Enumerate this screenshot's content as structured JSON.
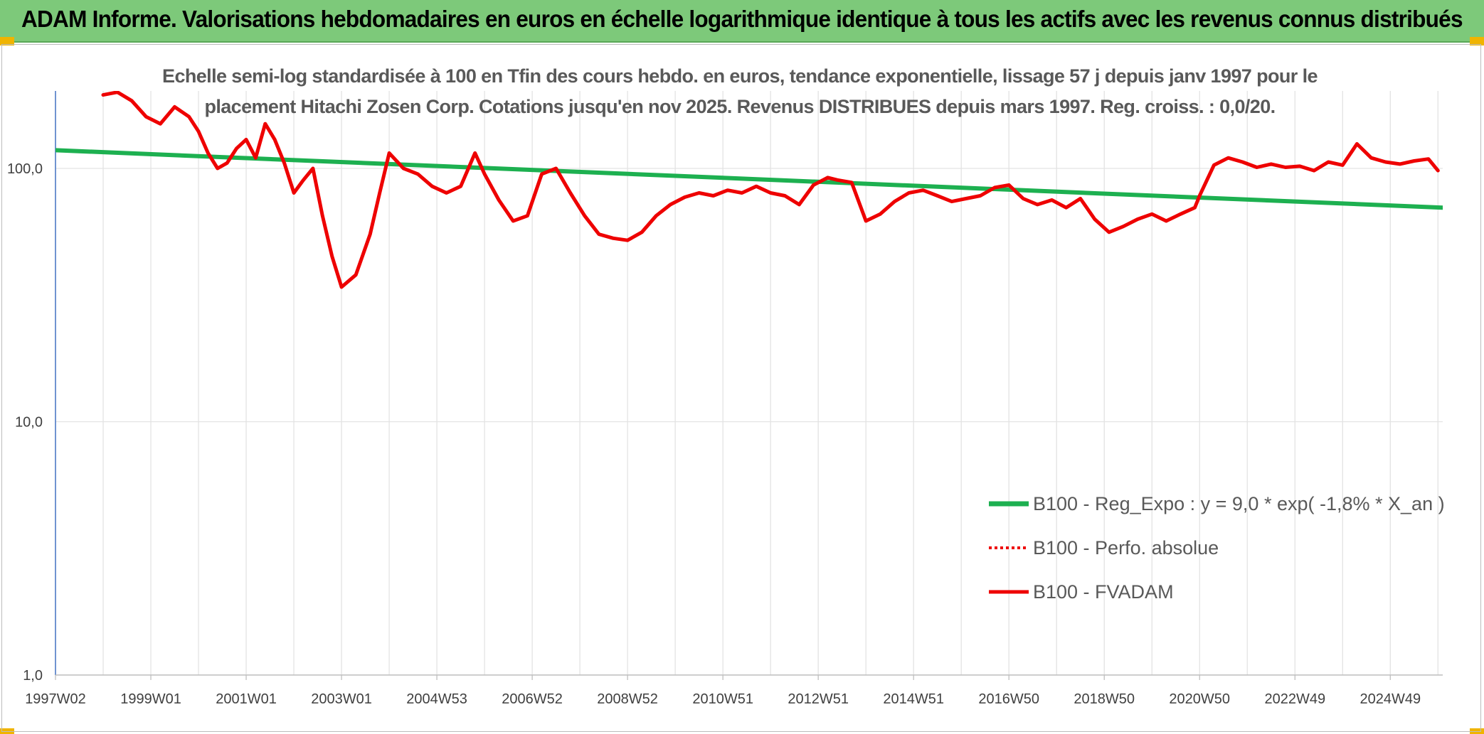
{
  "header": {
    "title": "ADAM Informe. Valorisations hebdomadaires en euros en échelle logarithmique identique à tous les actifs avec les revenus connus distribués"
  },
  "colors": {
    "header_bg": "#7dc97a",
    "regression": "#1db050",
    "fvadam": "#ee0000",
    "perf_absolue": "#ee0000"
  },
  "chart_data": {
    "type": "line",
    "title_line1": "Echelle semi-log standardisée à 100 en Tfin des cours hebdo. en euros, tendance exponentielle, lissage 57 j depuis janv 1997 pour le",
    "title_line2": "placement Hitachi Zosen Corp. Cotations jusqu'en nov 2025. Revenus DISTRIBUES depuis mars 1997. Reg. croiss. : 0,0/20.",
    "y_scale": "log",
    "y_range": [
      1,
      200
    ],
    "y_ticks": [
      {
        "value": 1,
        "label": "1,0"
      },
      {
        "value": 10,
        "label": "10,0"
      },
      {
        "value": 100,
        "label": "100,0"
      }
    ],
    "x_range": [
      1997.0,
      2026.1
    ],
    "x_ticks": [
      {
        "x": 1997.0,
        "label": "1997W02"
      },
      {
        "x": 1999.0,
        "label": "1999W01"
      },
      {
        "x": 2001.0,
        "label": "2001W01"
      },
      {
        "x": 2003.0,
        "label": "2003W01"
      },
      {
        "x": 2005.0,
        "label": "2004W53"
      },
      {
        "x": 2007.0,
        "label": "2006W52"
      },
      {
        "x": 2009.0,
        "label": "2008W52"
      },
      {
        "x": 2011.0,
        "label": "2010W51"
      },
      {
        "x": 2013.0,
        "label": "2012W51"
      },
      {
        "x": 2015.0,
        "label": "2014W51"
      },
      {
        "x": 2017.0,
        "label": "2016W50"
      },
      {
        "x": 2019.0,
        "label": "2018W50"
      },
      {
        "x": 2021.0,
        "label": "2020W50"
      },
      {
        "x": 2023.0,
        "label": "2022W49"
      },
      {
        "x": 2025.0,
        "label": "2024W49"
      }
    ],
    "grid": "vertical",
    "legend_position": "bottom-right",
    "series": [
      {
        "name": "B100 - Reg_Expo : y = 9,0 * exp( -1,8% *  X_an )",
        "style": "solid",
        "x": [
          1997.0,
          2026.1
        ],
        "y": [
          118,
          70
        ]
      },
      {
        "name": "B100 - Perfo. absolue",
        "style": "dotted",
        "x": [],
        "y": []
      },
      {
        "name": "B100 - FVADAM",
        "style": "solid",
        "x": [
          1998.0,
          1998.3,
          1998.6,
          1998.9,
          1999.2,
          1999.5,
          1999.8,
          2000.0,
          2000.2,
          2000.4,
          2000.6,
          2000.8,
          2001.0,
          2001.2,
          2001.4,
          2001.6,
          2001.8,
          2002.0,
          2002.2,
          2002.4,
          2002.6,
          2002.8,
          2003.0,
          2003.3,
          2003.6,
          2003.8,
          2004.0,
          2004.3,
          2004.6,
          2004.9,
          2005.2,
          2005.5,
          2005.8,
          2006.0,
          2006.3,
          2006.6,
          2006.9,
          2007.2,
          2007.5,
          2007.8,
          2008.1,
          2008.4,
          2008.7,
          2009.0,
          2009.3,
          2009.6,
          2009.9,
          2010.2,
          2010.5,
          2010.8,
          2011.1,
          2011.4,
          2011.7,
          2012.0,
          2012.3,
          2012.6,
          2012.9,
          2013.2,
          2013.4,
          2013.7,
          2014.0,
          2014.3,
          2014.6,
          2014.9,
          2015.2,
          2015.5,
          2015.8,
          2016.1,
          2016.4,
          2016.7,
          2017.0,
          2017.3,
          2017.6,
          2017.9,
          2018.2,
          2018.5,
          2018.8,
          2019.1,
          2019.4,
          2019.7,
          2020.0,
          2020.3,
          2020.6,
          2020.9,
          2021.0,
          2021.3,
          2021.6,
          2021.9,
          2022.2,
          2022.5,
          2022.8,
          2023.1,
          2023.4,
          2023.7,
          2024.0,
          2024.3,
          2024.6,
          2024.9,
          2025.2,
          2025.5,
          2025.8,
          2026.0
        ],
        "y": [
          195,
          200,
          185,
          160,
          150,
          175,
          160,
          140,
          115,
          100,
          105,
          120,
          130,
          110,
          150,
          130,
          105,
          80,
          90,
          100,
          65,
          45,
          34,
          38,
          55,
          80,
          115,
          100,
          95,
          85,
          80,
          85,
          115,
          95,
          75,
          62,
          65,
          95,
          100,
          80,
          65,
          55,
          53,
          52,
          56,
          65,
          72,
          77,
          80,
          78,
          82,
          80,
          85,
          80,
          78,
          72,
          86,
          92,
          90,
          88,
          62,
          66,
          74,
          80,
          82,
          78,
          74,
          76,
          78,
          84,
          86,
          76,
          72,
          75,
          70,
          76,
          63,
          56,
          59,
          63,
          66,
          62,
          66,
          70,
          78,
          103,
          110,
          106,
          101,
          104,
          101,
          102,
          98,
          106,
          103,
          125,
          110,
          106,
          104,
          107,
          109,
          98
        ]
      }
    ]
  }
}
